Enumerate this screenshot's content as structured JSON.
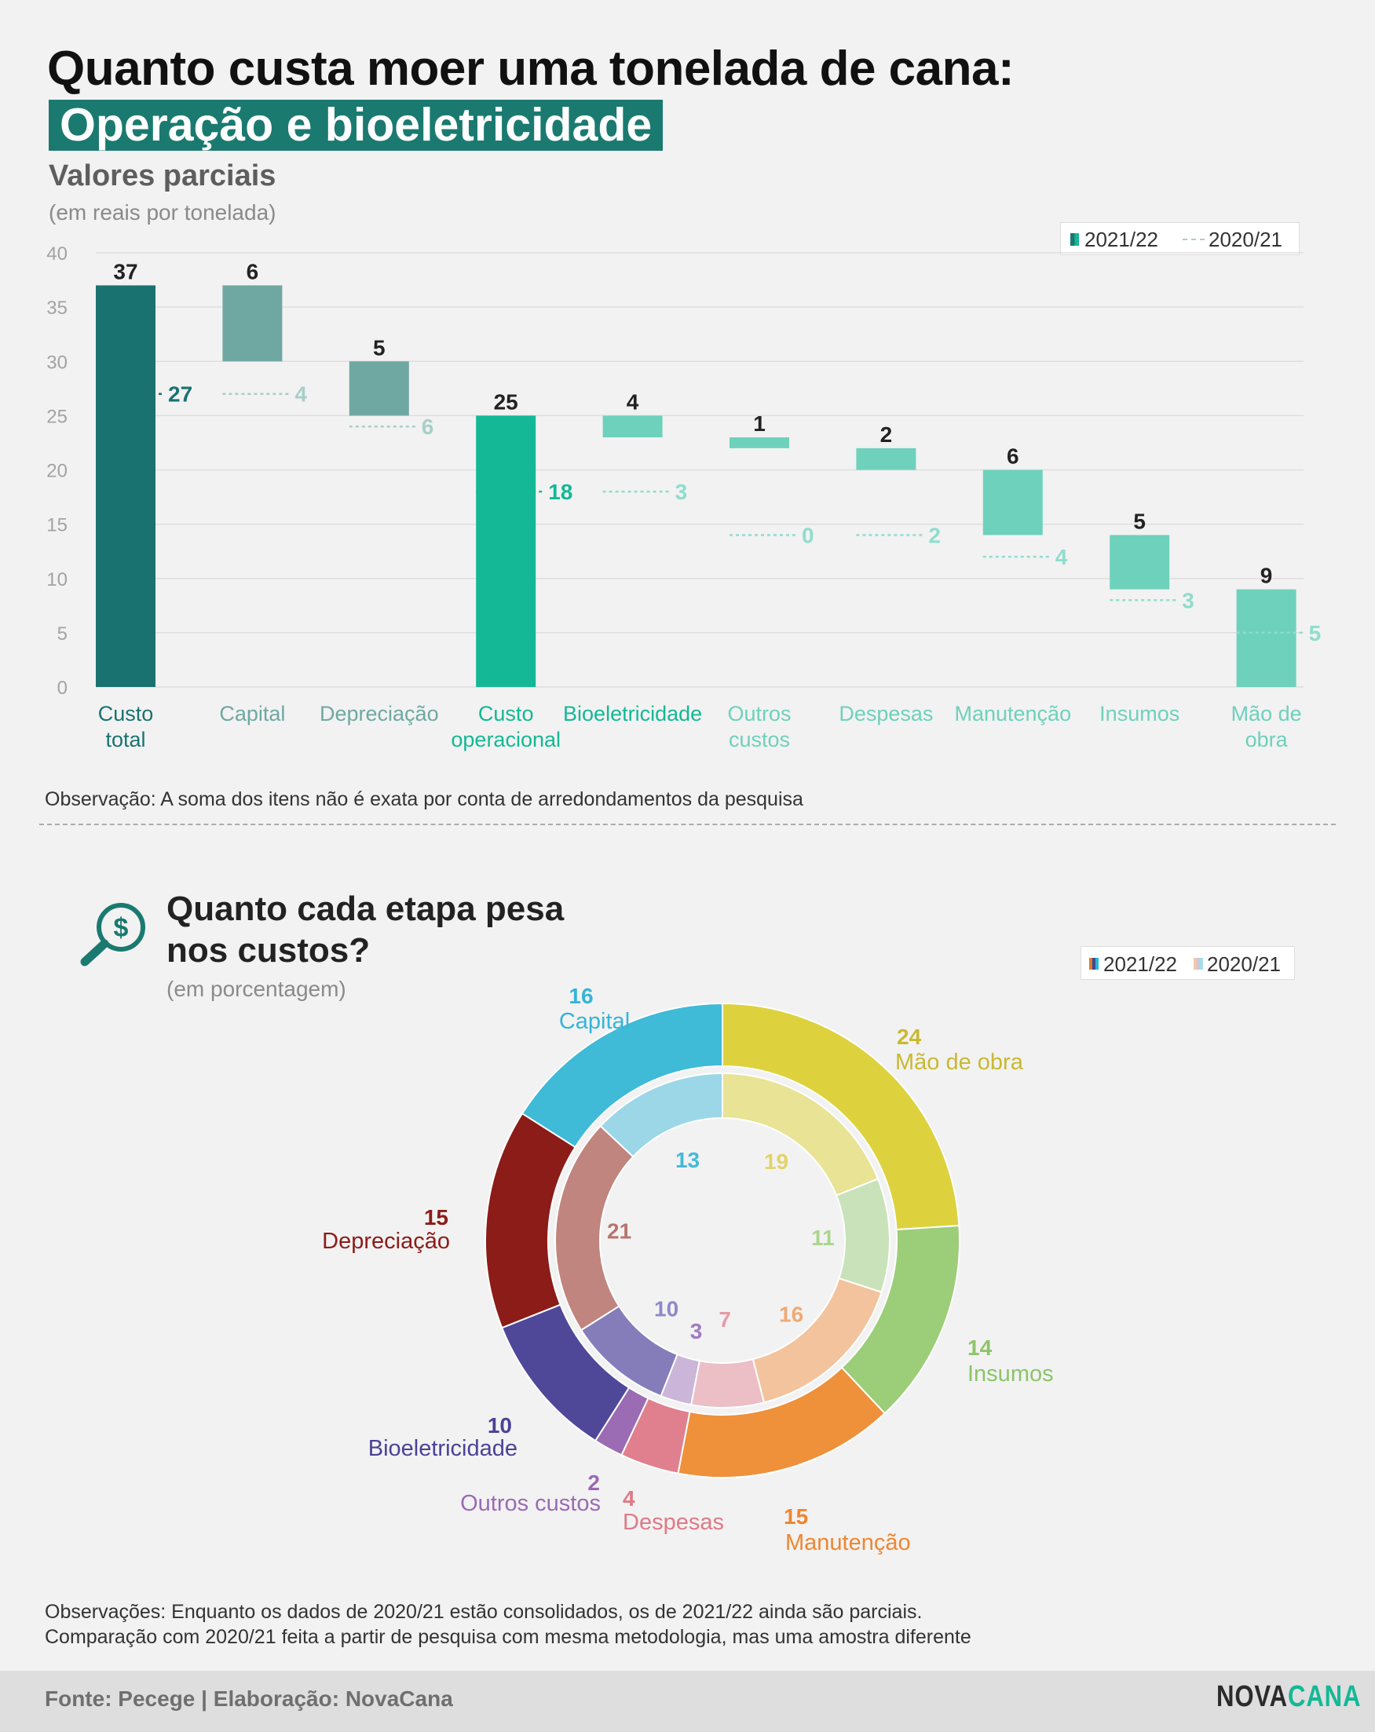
{
  "header": {
    "title": "Quanto custa moer uma tonelada de cana:",
    "subtitle": "Operação e bioeletricidade"
  },
  "section1": {
    "heading": "Valores parciais",
    "unit": "(em reais por tonelada)",
    "legend": {
      "current": "2021/22",
      "previous": "2020/21"
    },
    "note": "Observação: A soma dos itens não é exata por conta de arredondamentos da pesquisa"
  },
  "section2": {
    "heading": "Quanto cada etapa pesa nos custos?",
    "unit": "(em porcentagem)",
    "legend": {
      "current": "2021/22",
      "previous": "2020/21"
    },
    "note_line1": "Observações: Enquanto os dados de 2020/21 estão consolidados, os de 2021/22 ainda são parciais.",
    "note_line2": "Comparação com 2020/21 feita a partir de pesquisa com mesma metodologia, mas uma amostra diferente"
  },
  "footer": {
    "source": "Fonte: Pecege | Elaboração: NovaCana",
    "brand_part1": "NOVA",
    "brand_part2": "CANA"
  },
  "icons": {
    "search": "magnifier-dollar-icon"
  },
  "colors": {
    "accent": "#1a7a70",
    "total": "#1a7270",
    "capital": "#6fa8a2",
    "operational": "#14b896",
    "light": "#6ed1bc"
  },
  "chart_data": [
    {
      "type": "bar",
      "subtype": "waterfall",
      "title": "Valores parciais",
      "ylim": [
        0,
        40
      ],
      "yticks": [
        0,
        5,
        10,
        15,
        20,
        25,
        30,
        35,
        40
      ],
      "grid": true,
      "legend_position": "top-right",
      "categories": [
        [
          "Custo",
          "total"
        ],
        [
          "Capital"
        ],
        [
          "Depreciação"
        ],
        [
          "Custo",
          "operacional"
        ],
        [
          "Bioeletricidade"
        ],
        [
          "Outros",
          "custos"
        ],
        [
          "Despesas"
        ],
        [
          "Manutenção"
        ],
        [
          "Insumos"
        ],
        [
          "Mão de",
          "obra"
        ]
      ],
      "series": [
        {
          "name": "2021/22",
          "values": [
            37,
            6,
            5,
            25,
            4,
            1,
            2,
            6,
            5,
            9
          ],
          "bar_bottom": [
            0,
            30,
            25,
            0,
            23,
            22,
            20,
            14,
            9,
            0
          ],
          "bar_top": [
            37,
            37,
            30,
            25,
            25,
            23,
            22,
            20,
            14,
            9
          ],
          "colors": [
            "#1a7270",
            "#6fa8a2",
            "#6fa8a2",
            "#14b896",
            "#6ed1bc",
            "#6ed1bc",
            "#6ed1bc",
            "#6ed1bc",
            "#6ed1bc",
            "#6ed1bc"
          ]
        },
        {
          "name": "2020/21",
          "values": [
            27,
            4,
            6,
            18,
            3,
            0,
            2,
            4,
            3,
            5
          ],
          "marker_level": [
            27,
            27,
            24,
            18,
            18,
            14,
            14,
            12,
            8,
            5
          ]
        }
      ]
    },
    {
      "type": "pie",
      "subtype": "donut",
      "title": "Quanto cada etapa pesa nos custos?",
      "legend_position": "top-right",
      "categories": [
        "Mão de obra",
        "Insumos",
        "Manutenção",
        "Despesas",
        "Outros custos",
        "Bioeletricidade",
        "Depreciação",
        "Capital"
      ],
      "series": [
        {
          "name": "2021/22",
          "values": [
            24,
            14,
            15,
            4,
            2,
            10,
            15,
            16
          ],
          "colors": [
            "#ddd23e",
            "#9ccd78",
            "#ef903a",
            "#e0808e",
            "#9b6bb3",
            "#4f4898",
            "#8b1c18",
            "#3fbad7"
          ]
        },
        {
          "name": "2020/21",
          "values": [
            19,
            11,
            16,
            7,
            3,
            10,
            21,
            13
          ],
          "colors": [
            "#e8e395",
            "#c9e2b9",
            "#f2c39c",
            "#ecbec6",
            "#cbb5d8",
            "#857dba",
            "#c0857e",
            "#9bd7e7"
          ]
        }
      ],
      "label_colors": [
        "#c9b930",
        "#8cc46a",
        "#ef8630",
        "#e07a86",
        "#9a6ab5",
        "#4a4296",
        "#8b1c18",
        "#35b4d8"
      ]
    }
  ]
}
